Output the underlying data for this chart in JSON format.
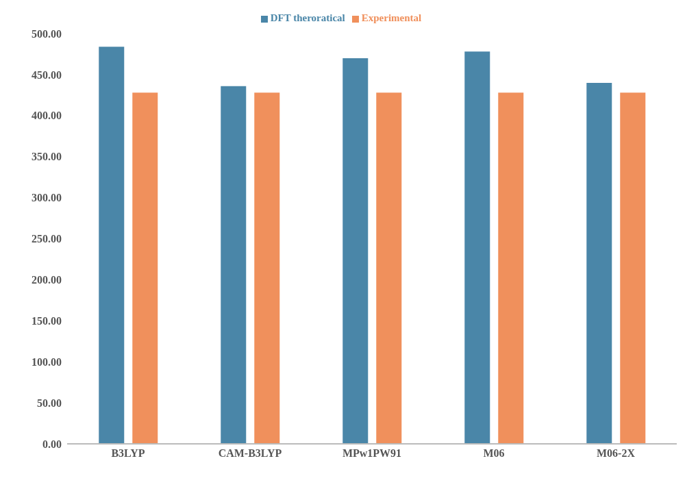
{
  "chart_data": {
    "type": "bar",
    "categories": [
      "B3LYP",
      "CAM-B3LYP",
      "MPw1PW91",
      "M06",
      "M06-2X"
    ],
    "series": [
      {
        "name": "DFT theroratical",
        "color": "#4a86a8",
        "values": [
          484,
          436,
          470,
          478,
          440
        ]
      },
      {
        "name": "Experimental",
        "color": "#f0905c",
        "values": [
          428,
          428,
          428,
          428,
          428
        ]
      }
    ],
    "ylim": [
      0,
      500
    ],
    "yticks": [
      {
        "value": 0,
        "label": "0.00"
      },
      {
        "value": 50,
        "label": "50.00"
      },
      {
        "value": 100,
        "label": "100.00"
      },
      {
        "value": 150,
        "label": "150.00"
      },
      {
        "value": 200,
        "label": "200.00"
      },
      {
        "value": 250,
        "label": "250.00"
      },
      {
        "value": 300,
        "label": "300.00"
      },
      {
        "value": 350,
        "label": "350.00"
      },
      {
        "value": 400,
        "label": "400.00"
      },
      {
        "value": 450,
        "label": "450.00"
      },
      {
        "value": 500,
        "label": "500.00"
      }
    ],
    "grid": false,
    "legend": "top"
  }
}
